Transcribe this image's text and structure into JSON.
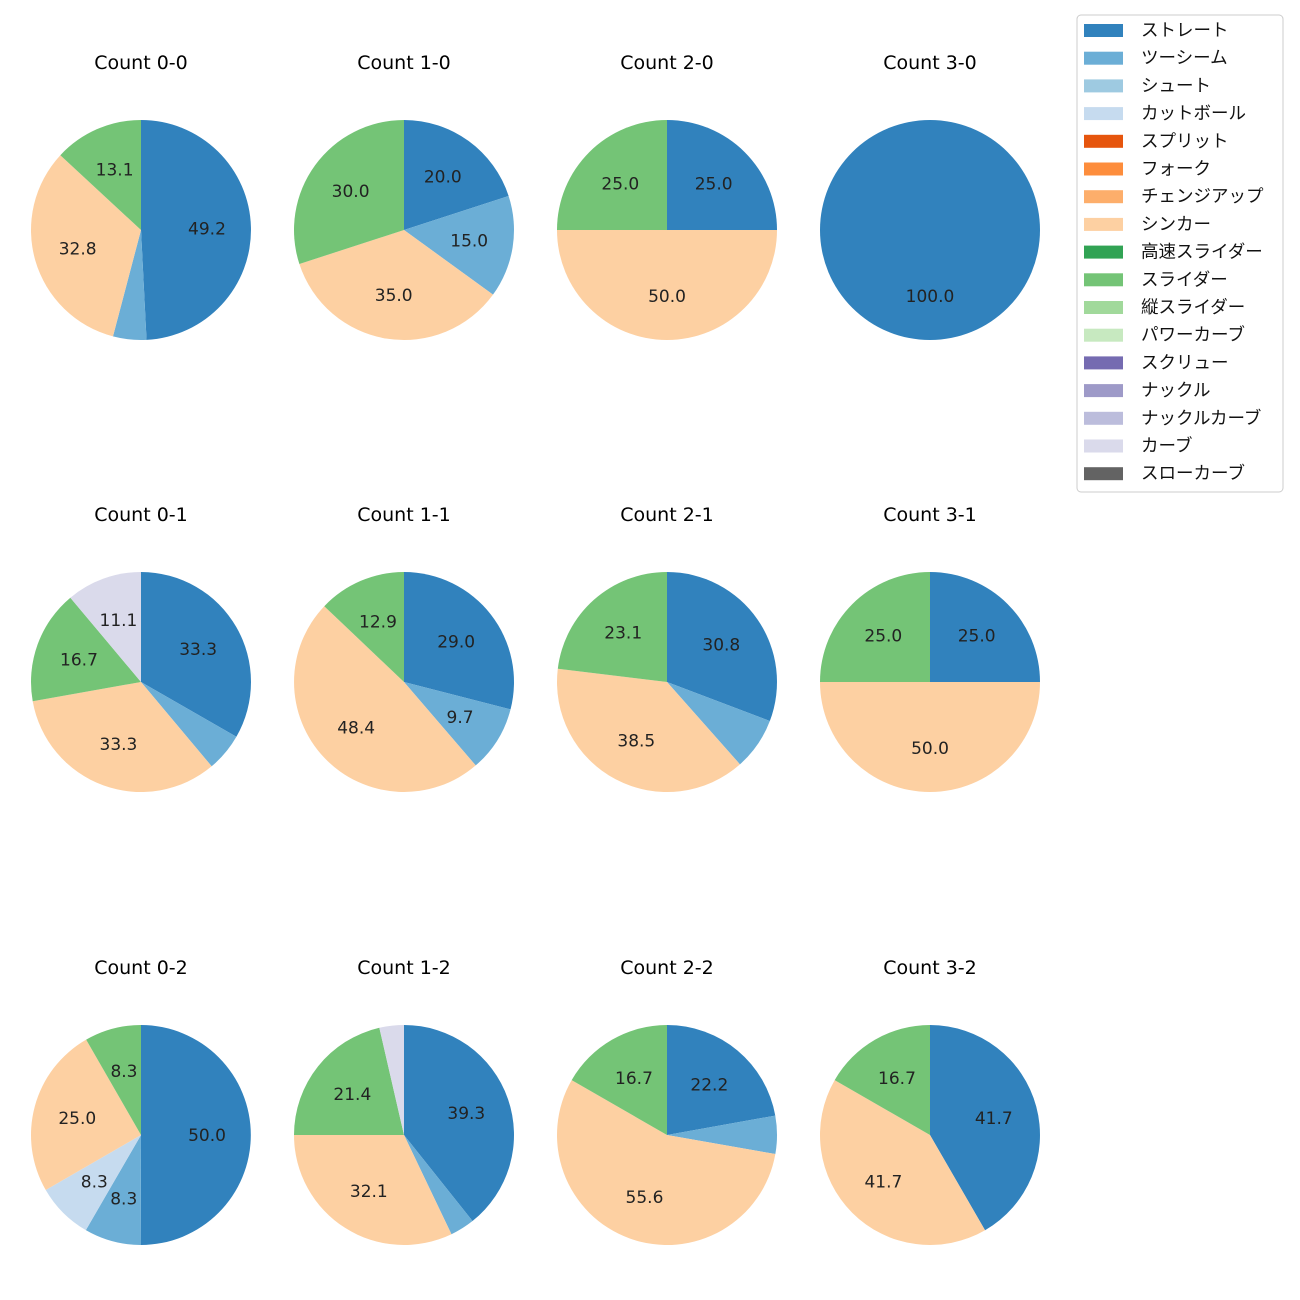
{
  "chart_data": {
    "type": "pie",
    "legend_placement": "top-right",
    "start_angle": "12 o'clock, clockwise",
    "categories": [
      "ストレート",
      "ツーシーム",
      "シュート",
      "カットボール",
      "スプリット",
      "フォーク",
      "チェンジアップ",
      "シンカー",
      "高速スライダー",
      "スライダー",
      "縦スライダー",
      "パワーカーブ",
      "スクリュー",
      "ナックル",
      "ナックルカーブ",
      "カーブ",
      "スローカーブ"
    ],
    "colors": [
      "#3182bd",
      "#6baed6",
      "#9ecae1",
      "#c6dbef",
      "#e6550d",
      "#fd8d3c",
      "#fdae6b",
      "#fdd0a2",
      "#31a354",
      "#74c476",
      "#a1d99b",
      "#c7e9c0",
      "#756bb1",
      "#9e9ac8",
      "#bcbddc",
      "#dadaeb",
      "#636363"
    ],
    "charts": [
      {
        "title": "Count 0-0",
        "values": {
          "ストレート": 49.2,
          "ツーシーム": 4.9,
          "シンカー": 32.8,
          "スライダー": 13.1
        },
        "labels": {
          "ストレート": "49.2",
          "シンカー": "32.8",
          "スライダー": "13.1"
        }
      },
      {
        "title": "Count 1-0",
        "values": {
          "ストレート": 20.0,
          "ツーシーム": 15.0,
          "シンカー": 35.0,
          "スライダー": 30.0
        },
        "labels": {
          "ストレート": "20.0",
          "ツーシーム": "15.0",
          "シンカー": "35.0",
          "スライダー": "30.0"
        }
      },
      {
        "title": "Count 2-0",
        "values": {
          "ストレート": 25.0,
          "シンカー": 50.0,
          "スライダー": 25.0
        },
        "labels": {
          "ストレート": "25.0",
          "シンカー": "50.0",
          "スライダー": "25.0"
        }
      },
      {
        "title": "Count 3-0",
        "values": {
          "ストレート": 100.0
        },
        "labels": {
          "ストレート": "100.0"
        }
      },
      {
        "title": "Count 0-1",
        "values": {
          "ストレート": 33.3,
          "ツーシーム": 5.6,
          "シンカー": 33.3,
          "スライダー": 16.7,
          "カーブ": 11.1
        },
        "labels": {
          "ストレート": "33.3",
          "シンカー": "33.3",
          "スライダー": "16.7",
          "カーブ": "11.1"
        }
      },
      {
        "title": "Count 1-1",
        "values": {
          "ストレート": 29.0,
          "ツーシーム": 9.7,
          "シンカー": 48.4,
          "スライダー": 12.9
        },
        "labels": {
          "ストレート": "29.0",
          "ツーシーム": "9.7",
          "シンカー": "48.4",
          "スライダー": "12.9"
        }
      },
      {
        "title": "Count 2-1",
        "values": {
          "ストレート": 30.8,
          "ツーシーム": 7.7,
          "シンカー": 38.5,
          "スライダー": 23.1
        },
        "labels": {
          "ストレート": "30.8",
          "シンカー": "38.5",
          "スライダー": "23.1"
        }
      },
      {
        "title": "Count 3-1",
        "values": {
          "ストレート": 25.0,
          "シンカー": 50.0,
          "スライダー": 25.0
        },
        "labels": {
          "ストレート": "25.0",
          "シンカー": "50.0",
          "スライダー": "25.0"
        }
      },
      {
        "title": "Count 0-2",
        "values": {
          "ストレート": 50.0,
          "ツーシーム": 8.3,
          "カットボール": 8.3,
          "シンカー": 25.0,
          "スライダー": 8.3
        },
        "labels": {
          "ストレート": "50.0",
          "ツーシーム": "8.3",
          "カットボール": "8.3",
          "シンカー": "25.0",
          "スライダー": "8.3"
        }
      },
      {
        "title": "Count 1-2",
        "values": {
          "ストレート": 39.3,
          "ツーシーム": 3.6,
          "シンカー": 32.1,
          "スライダー": 21.4,
          "カーブ": 3.6
        },
        "labels": {
          "ストレート": "39.3",
          "シンカー": "32.1",
          "スライダー": "21.4"
        }
      },
      {
        "title": "Count 2-2",
        "values": {
          "ストレート": 22.2,
          "ツーシーム": 5.6,
          "シンカー": 55.6,
          "スライダー": 16.7
        },
        "labels": {
          "ストレート": "22.2",
          "シンカー": "55.6",
          "スライダー": "16.7"
        }
      },
      {
        "title": "Count 3-2",
        "values": {
          "ストレート": 41.7,
          "シンカー": 41.7,
          "スライダー": 16.7
        },
        "labels": {
          "ストレート": "41.7",
          "シンカー": "41.7",
          "スライダー": "16.7"
        }
      }
    ]
  }
}
